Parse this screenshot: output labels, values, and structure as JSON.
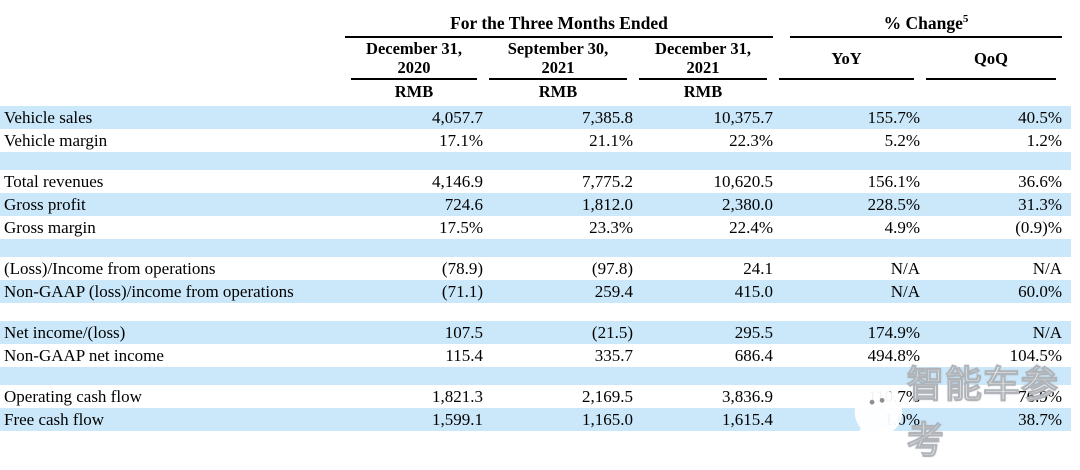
{
  "header": {
    "period_group": "For the Three Months Ended",
    "pct_change_label": "% Change",
    "pct_change_sup": "5",
    "columns": [
      {
        "line1": "December 31,",
        "line2": "2020",
        "unit": "RMB"
      },
      {
        "line1": "September 30,",
        "line2": "2021",
        "unit": "RMB"
      },
      {
        "line1": "December 31,",
        "line2": "2021",
        "unit": "RMB"
      }
    ],
    "change_columns": [
      "YoY",
      "QoQ"
    ]
  },
  "rows": [
    {
      "type": "data",
      "shade": true,
      "label": "Vehicle sales",
      "values": [
        "4,057.7",
        "7,385.8",
        "10,375.7",
        "155.7%",
        "40.5%"
      ]
    },
    {
      "type": "data",
      "shade": false,
      "label": "Vehicle margin",
      "values": [
        "17.1%",
        "21.1%",
        "22.3%",
        "5.2%",
        "1.2%"
      ]
    },
    {
      "type": "spacer",
      "shade": true,
      "label": "",
      "values": [
        "",
        "",
        "",
        "",
        ""
      ]
    },
    {
      "type": "data",
      "shade": false,
      "label": "Total revenues",
      "values": [
        "4,146.9",
        "7,775.2",
        "10,620.5",
        "156.1%",
        "36.6%"
      ]
    },
    {
      "type": "data",
      "shade": true,
      "label": "Gross profit",
      "values": [
        "724.6",
        "1,812.0",
        "2,380.0",
        "228.5%",
        "31.3%"
      ]
    },
    {
      "type": "data",
      "shade": false,
      "label": "Gross margin",
      "values": [
        "17.5%",
        "23.3%",
        "22.4%",
        "4.9%",
        "(0.9)%"
      ]
    },
    {
      "type": "spacer",
      "shade": true,
      "label": "",
      "values": [
        "",
        "",
        "",
        "",
        ""
      ]
    },
    {
      "type": "data",
      "shade": false,
      "label": "(Loss)/Income from operations",
      "values": [
        "(78.9)",
        "(97.8)",
        "24.1",
        "N/A",
        "N/A"
      ]
    },
    {
      "type": "data",
      "shade": true,
      "label": "Non-GAAP (loss)/income from operations",
      "values": [
        "(71.1)",
        "259.4",
        "415.0",
        "N/A",
        "60.0%"
      ]
    },
    {
      "type": "spacer",
      "shade": false,
      "label": "",
      "values": [
        "",
        "",
        "",
        "",
        ""
      ]
    },
    {
      "type": "data",
      "shade": true,
      "label": "Net income/(loss)",
      "values": [
        "107.5",
        "(21.5)",
        "295.5",
        "174.9%",
        "N/A"
      ]
    },
    {
      "type": "data",
      "shade": false,
      "label": "Non-GAAP net income",
      "values": [
        "115.4",
        "335.7",
        "686.4",
        "494.8%",
        "104.5%"
      ]
    },
    {
      "type": "spacer",
      "shade": true,
      "label": "",
      "values": [
        "",
        "",
        "",
        "",
        ""
      ]
    },
    {
      "type": "data",
      "shade": false,
      "label": "Operating cash flow",
      "values": [
        "1,821.3",
        "2,169.5",
        "3,836.9",
        "110.7%",
        "76.9%"
      ]
    },
    {
      "type": "data",
      "shade": true,
      "label": "Free cash flow",
      "values": [
        "1,599.1",
        "1,165.0",
        "1,615.4",
        "1.0%",
        "38.7%"
      ]
    }
  ],
  "watermark": {
    "text": "智能车参考"
  },
  "colors": {
    "stripe": "#cbe8fa",
    "text": "#000000",
    "rule": "#000000"
  }
}
